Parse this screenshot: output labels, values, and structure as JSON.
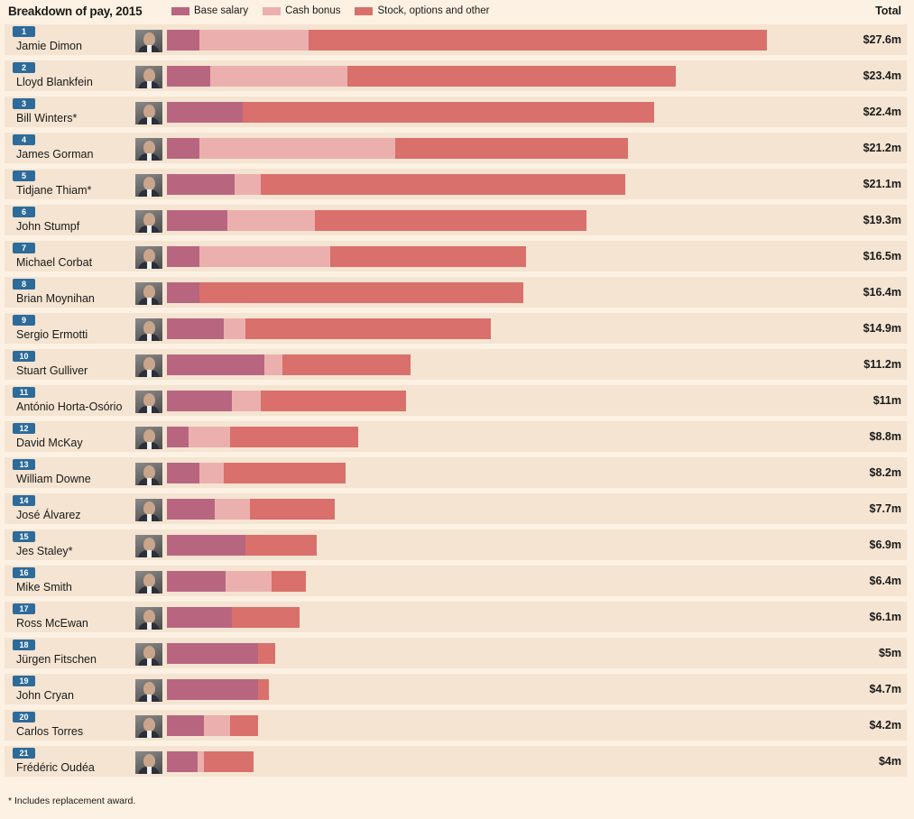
{
  "header": {
    "title": "Breakdown of pay, 2015",
    "total_label": "Total"
  },
  "legend": [
    {
      "label": "Base salary",
      "color": "#b86680"
    },
    {
      "label": "Cash bonus",
      "color": "#ebb0ae"
    },
    {
      "label": "Stock, options and other",
      "color": "#d9706b"
    }
  ],
  "footnote": "* Includes replacement award.",
  "chart_data": {
    "type": "bar",
    "orientation": "horizontal",
    "stacked": true,
    "title": "Breakdown of pay, 2015",
    "unit": "$m",
    "xlim": [
      0,
      30
    ],
    "series_names": [
      "Base salary",
      "Cash bonus",
      "Stock, options and other"
    ],
    "rows": [
      {
        "rank": "1",
        "name": "Jamie Dimon",
        "total": "$27.6m",
        "values": [
          1.5,
          5.0,
          21.1
        ]
      },
      {
        "rank": "2",
        "name": "Lloyd Blankfein",
        "total": "$23.4m",
        "values": [
          2.0,
          6.3,
          15.1
        ]
      },
      {
        "rank": "3",
        "name": "Bill Winters*",
        "total": "$22.4m",
        "values": [
          3.5,
          0,
          18.9
        ]
      },
      {
        "rank": "4",
        "name": "James Gorman",
        "total": "$21.2m",
        "values": [
          1.5,
          9.0,
          10.7
        ]
      },
      {
        "rank": "5",
        "name": "Tidjane Thiam*",
        "total": "$21.1m",
        "values": [
          3.1,
          1.2,
          16.8
        ]
      },
      {
        "rank": "6",
        "name": "John Stumpf",
        "total": "$19.3m",
        "values": [
          2.8,
          4.0,
          12.5
        ]
      },
      {
        "rank": "7",
        "name": "Michael Corbat",
        "total": "$16.5m",
        "values": [
          1.5,
          6.0,
          9.0
        ]
      },
      {
        "rank": "8",
        "name": "Brian Moynihan",
        "total": "$16.4m",
        "values": [
          1.5,
          0,
          14.9
        ]
      },
      {
        "rank": "9",
        "name": "Sergio Ermotti",
        "total": "$14.9m",
        "values": [
          2.6,
          1.0,
          11.3
        ]
      },
      {
        "rank": "10",
        "name": "Stuart Gulliver",
        "total": "$11.2m",
        "values": [
          4.5,
          0.8,
          5.9
        ]
      },
      {
        "rank": "11",
        "name": "António Horta-Osório",
        "total": "$11m",
        "values": [
          3.0,
          1.3,
          6.7
        ]
      },
      {
        "rank": "12",
        "name": "David McKay",
        "total": "$8.8m",
        "values": [
          1.0,
          1.9,
          5.9
        ]
      },
      {
        "rank": "13",
        "name": "William Downe",
        "total": "$8.2m",
        "values": [
          1.5,
          1.1,
          5.6
        ]
      },
      {
        "rank": "14",
        "name": "José Álvarez",
        "total": "$7.7m",
        "values": [
          2.2,
          1.6,
          3.9
        ]
      },
      {
        "rank": "15",
        "name": "Jes Staley*",
        "total": "$6.9m",
        "values": [
          3.6,
          0,
          3.3
        ]
      },
      {
        "rank": "16",
        "name": "Mike Smith",
        "total": "$6.4m",
        "values": [
          2.7,
          2.1,
          1.6
        ]
      },
      {
        "rank": "17",
        "name": "Ross McEwan",
        "total": "$6.1m",
        "values": [
          3.0,
          0,
          3.1
        ]
      },
      {
        "rank": "18",
        "name": "Jürgen Fitschen",
        "total": "$5m",
        "values": [
          4.2,
          0,
          0.8
        ]
      },
      {
        "rank": "19",
        "name": "John Cryan",
        "total": "$4.7m",
        "values": [
          4.2,
          0,
          0.5
        ]
      },
      {
        "rank": "20",
        "name": "Carlos Torres",
        "total": "$4.2m",
        "values": [
          1.7,
          1.2,
          1.3
        ]
      },
      {
        "rank": "21",
        "name": "Frédéric Oudéa",
        "total": "$4m",
        "values": [
          1.4,
          0.3,
          2.3
        ]
      }
    ]
  }
}
